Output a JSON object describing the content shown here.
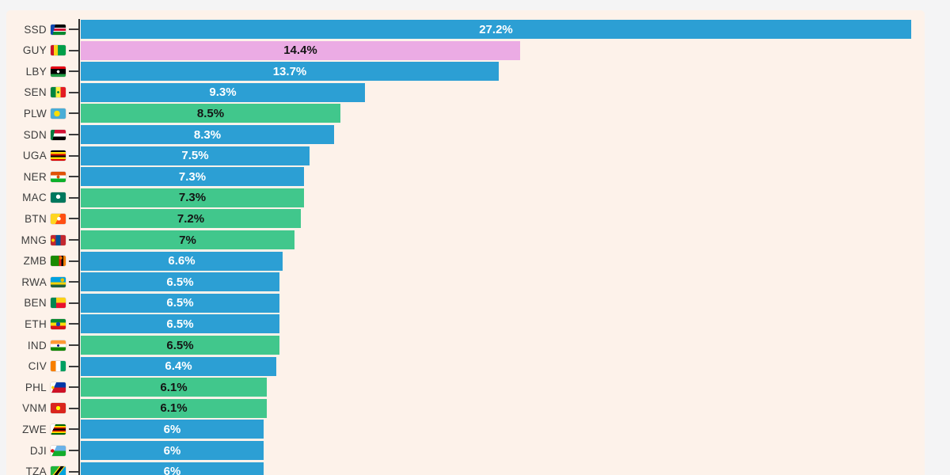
{
  "chart_data": {
    "type": "bar",
    "orientation": "horizontal",
    "unit": "%",
    "title": "",
    "xlabel": "",
    "ylabel": "",
    "xlim": [
      0,
      27.65
    ],
    "grid": false,
    "legend": false,
    "categories": [
      "SSD",
      "GUY",
      "LBY",
      "SEN",
      "PLW",
      "SDN",
      "UGA",
      "NER",
      "MAC",
      "BTN",
      "MNG",
      "ZMB",
      "RWA",
      "BEN",
      "ETH",
      "IND",
      "CIV",
      "PHL",
      "VNM",
      "ZWE",
      "DJI",
      "TZA"
    ],
    "values": [
      27.2,
      14.4,
      13.7,
      9.3,
      8.5,
      8.3,
      7.5,
      7.3,
      7.3,
      7.2,
      7.0,
      6.6,
      6.5,
      6.5,
      6.5,
      6.5,
      6.4,
      6.1,
      6.1,
      6.0,
      6.0,
      6.0
    ],
    "rows": [
      {
        "code": "SSD",
        "flag": "flag-south-sudan",
        "value": 27.2,
        "label": "27.2%",
        "color": "blue"
      },
      {
        "code": "GUY",
        "flag": "flag-guyana",
        "value": 14.4,
        "label": "14.4%",
        "color": "pink"
      },
      {
        "code": "LBY",
        "flag": "flag-libya",
        "value": 13.7,
        "label": "13.7%",
        "color": "blue"
      },
      {
        "code": "SEN",
        "flag": "flag-senegal",
        "value": 9.3,
        "label": "9.3%",
        "color": "blue"
      },
      {
        "code": "PLW",
        "flag": "flag-palau",
        "value": 8.5,
        "label": "8.5%",
        "color": "green"
      },
      {
        "code": "SDN",
        "flag": "flag-sudan",
        "value": 8.3,
        "label": "8.3%",
        "color": "blue"
      },
      {
        "code": "UGA",
        "flag": "flag-uganda",
        "value": 7.5,
        "label": "7.5%",
        "color": "blue"
      },
      {
        "code": "NER",
        "flag": "flag-niger",
        "value": 7.3,
        "label": "7.3%",
        "color": "blue"
      },
      {
        "code": "MAC",
        "flag": "flag-macau",
        "value": 7.3,
        "label": "7.3%",
        "color": "green"
      },
      {
        "code": "BTN",
        "flag": "flag-bhutan",
        "value": 7.2,
        "label": "7.2%",
        "color": "green"
      },
      {
        "code": "MNG",
        "flag": "flag-mongolia",
        "value": 7.0,
        "label": "7%",
        "color": "green"
      },
      {
        "code": "ZMB",
        "flag": "flag-zambia",
        "value": 6.6,
        "label": "6.6%",
        "color": "blue"
      },
      {
        "code": "RWA",
        "flag": "flag-rwanda",
        "value": 6.5,
        "label": "6.5%",
        "color": "blue"
      },
      {
        "code": "BEN",
        "flag": "flag-benin",
        "value": 6.5,
        "label": "6.5%",
        "color": "blue"
      },
      {
        "code": "ETH",
        "flag": "flag-ethiopia",
        "value": 6.5,
        "label": "6.5%",
        "color": "blue"
      },
      {
        "code": "IND",
        "flag": "flag-india",
        "value": 6.5,
        "label": "6.5%",
        "color": "green"
      },
      {
        "code": "CIV",
        "flag": "flag-cote-divoire",
        "value": 6.4,
        "label": "6.4%",
        "color": "blue"
      },
      {
        "code": "PHL",
        "flag": "flag-philippines",
        "value": 6.1,
        "label": "6.1%",
        "color": "green"
      },
      {
        "code": "VNM",
        "flag": "flag-vietnam",
        "value": 6.1,
        "label": "6.1%",
        "color": "green"
      },
      {
        "code": "ZWE",
        "flag": "flag-zimbabwe",
        "value": 6.0,
        "label": "6%",
        "color": "blue"
      },
      {
        "code": "DJI",
        "flag": "flag-djibouti",
        "value": 6.0,
        "label": "6%",
        "color": "blue"
      },
      {
        "code": "TZA",
        "flag": "flag-tanzania",
        "value": 6.0,
        "label": "6%",
        "color": "blue"
      }
    ],
    "palette": {
      "blue": "#2c9fd4",
      "green": "#41c78c",
      "pink": "#ebabe4"
    },
    "value_text_colors": {
      "blue": "#ffffff",
      "green": "#141414",
      "pink": "#141414"
    },
    "background": "#fdf2ea",
    "frame_background": "#f4f4f5",
    "axis_color": "#2f2f2f"
  },
  "flag_styles": {
    "SSD": "linear-gradient(105deg, #0f47af 26%, rgba(0,0,0,0) 26.5%), linear-gradient(180deg, #000000 31%, #ffffff 31%, #ffffff 38%, #d21034 38%, #d21034 62%, #ffffff 62%, #ffffff 69%, #078930 69%)",
    "GUY": "linear-gradient(90deg, #ce1126 22%, #fcd116 22%, #fcd116 48%, #009e49 48%)",
    "LBY": "radial-gradient(circle at 50% 50%, #ffffff 15%, rgba(0,0,0,0) 16%), linear-gradient(180deg, #e70013 25%, #000000 25%, #000000 75%, #239e46 75%)",
    "SEN": "radial-gradient(circle at 50% 50%, #00853f 12%, rgba(0,0,0,0) 13%), linear-gradient(90deg, #00853f 33%, #fdef42 33%, #fdef42 67%, #e31b23 67%)",
    "PLW": "radial-gradient(circle at 42% 50%, #ffde00 28%, rgba(0,0,0,0) 30%), linear-gradient(#4aadd6, #4aadd6)",
    "SDN": "linear-gradient(102deg, #007a3d 24%, rgba(0,0,0,0) 24.5%), linear-gradient(180deg, #d21034 33%, #ffffff 33%, #ffffff 67%, #000000 67%)",
    "UGA": "linear-gradient(180deg, #000000 17%, #fcdc04 17%, #fcdc04 33%, #d90000 33%, #d90000 50%, #000000 50%, #000000 67%, #fcdc04 67%, #fcdc04 83%, #d90000 83%)",
    "NER": "radial-gradient(circle at 50% 50%, #e05206 16%, rgba(0,0,0,0) 17%), linear-gradient(180deg, #e05206 33%, #ffffff 33%, #ffffff 67%, #0db02b 67%)",
    "MAC": "radial-gradient(circle at 50% 42%, #ffffff 22%, rgba(0,0,0,0) 23%), linear-gradient(#00785e, #00785e)",
    "BTN": "radial-gradient(circle at 55% 48%, #ffffff 18%, rgba(0,0,0,0) 19%), linear-gradient(119deg, #ffd520 49%, #ff4e12 49%)",
    "MNG": "radial-gradient(circle at 16% 50%, #f9cf02 11%, rgba(0,0,0,0) 12%), linear-gradient(90deg, #c4272f 33%, #015197 33%, #015197 67%, #c4272f 67%)",
    "ZMB": "radial-gradient(circle at 68% 22%, #ef7d00 11%, rgba(0,0,0,0) 12%), linear-gradient(90deg, #198a00 55%, #de2010 55%, #de2010 70%, #000000 70%, #000000 85%, #ef7d00 85%)",
    "RWA": "radial-gradient(circle at 78% 28%, #e5be01 13%, rgba(0,0,0,0) 14%), linear-gradient(180deg, #00a1de 50%, #fad201 50%, #fad201 75%, #20603d 75%)",
    "BEN": "linear-gradient(90deg, #008751 38%, rgba(0,0,0,0) 38%), linear-gradient(180deg, #fcd116 50%, #e8112d 50%)",
    "ETH": "radial-gradient(circle at 50% 50%, #0f47af 22%, rgba(0,0,0,0) 23%), linear-gradient(180deg, #078930 33%, #fcdd09 33%, #fcdd09 67%, #da121a 67%)",
    "IND": "radial-gradient(circle at 50% 50%, #000080 12%, rgba(0,0,0,0) 13%), linear-gradient(180deg, #ff9933 33%, #ffffff 33%, #ffffff 67%, #128807 67%)",
    "CIV": "linear-gradient(90deg, #f77f00 33%, #ffffff 33%, #ffffff 67%, #009e60 67%)",
    "PHL": "radial-gradient(circle at 14% 50%, #fcd116 10%, rgba(0,0,0,0) 11%), linear-gradient(115deg, #ffffff 28%, rgba(0,0,0,0) 28.5%), linear-gradient(180deg, #0038a8 50%, #ce1126 50%)",
    "VNM": "radial-gradient(circle at 50% 50%, #ffff00 22%, rgba(0,0,0,0) 23%), linear-gradient(#da251d, #da251d)",
    "ZWE": "linear-gradient(115deg, #ffffff 24%, rgba(0,0,0,0) 24.5%), linear-gradient(180deg, #006400 14%, #ffd200 14%, #ffd200 29%, #d40000 29%, #d40000 43%, #000000 43%, #000000 57%, #d40000 57%, #d40000 71%, #ffd200 71%, #ffd200 86%, #006400 86%)",
    "DJI": "radial-gradient(circle at 12% 50%, #d7141a 12%, rgba(0,0,0,0) 13%), linear-gradient(115deg, #ffffff 30%, rgba(0,0,0,0) 30.5%), linear-gradient(180deg, #6ab2e7 50%, #12ad2b 50%)",
    "TZA": "linear-gradient(128deg, #1eb53a 38%, #fcd116 38%, #fcd116 44%, #000000 44%, #000000 58%, #fcd116 58%, #fcd116 63%, #00a3dd 63%)"
  }
}
